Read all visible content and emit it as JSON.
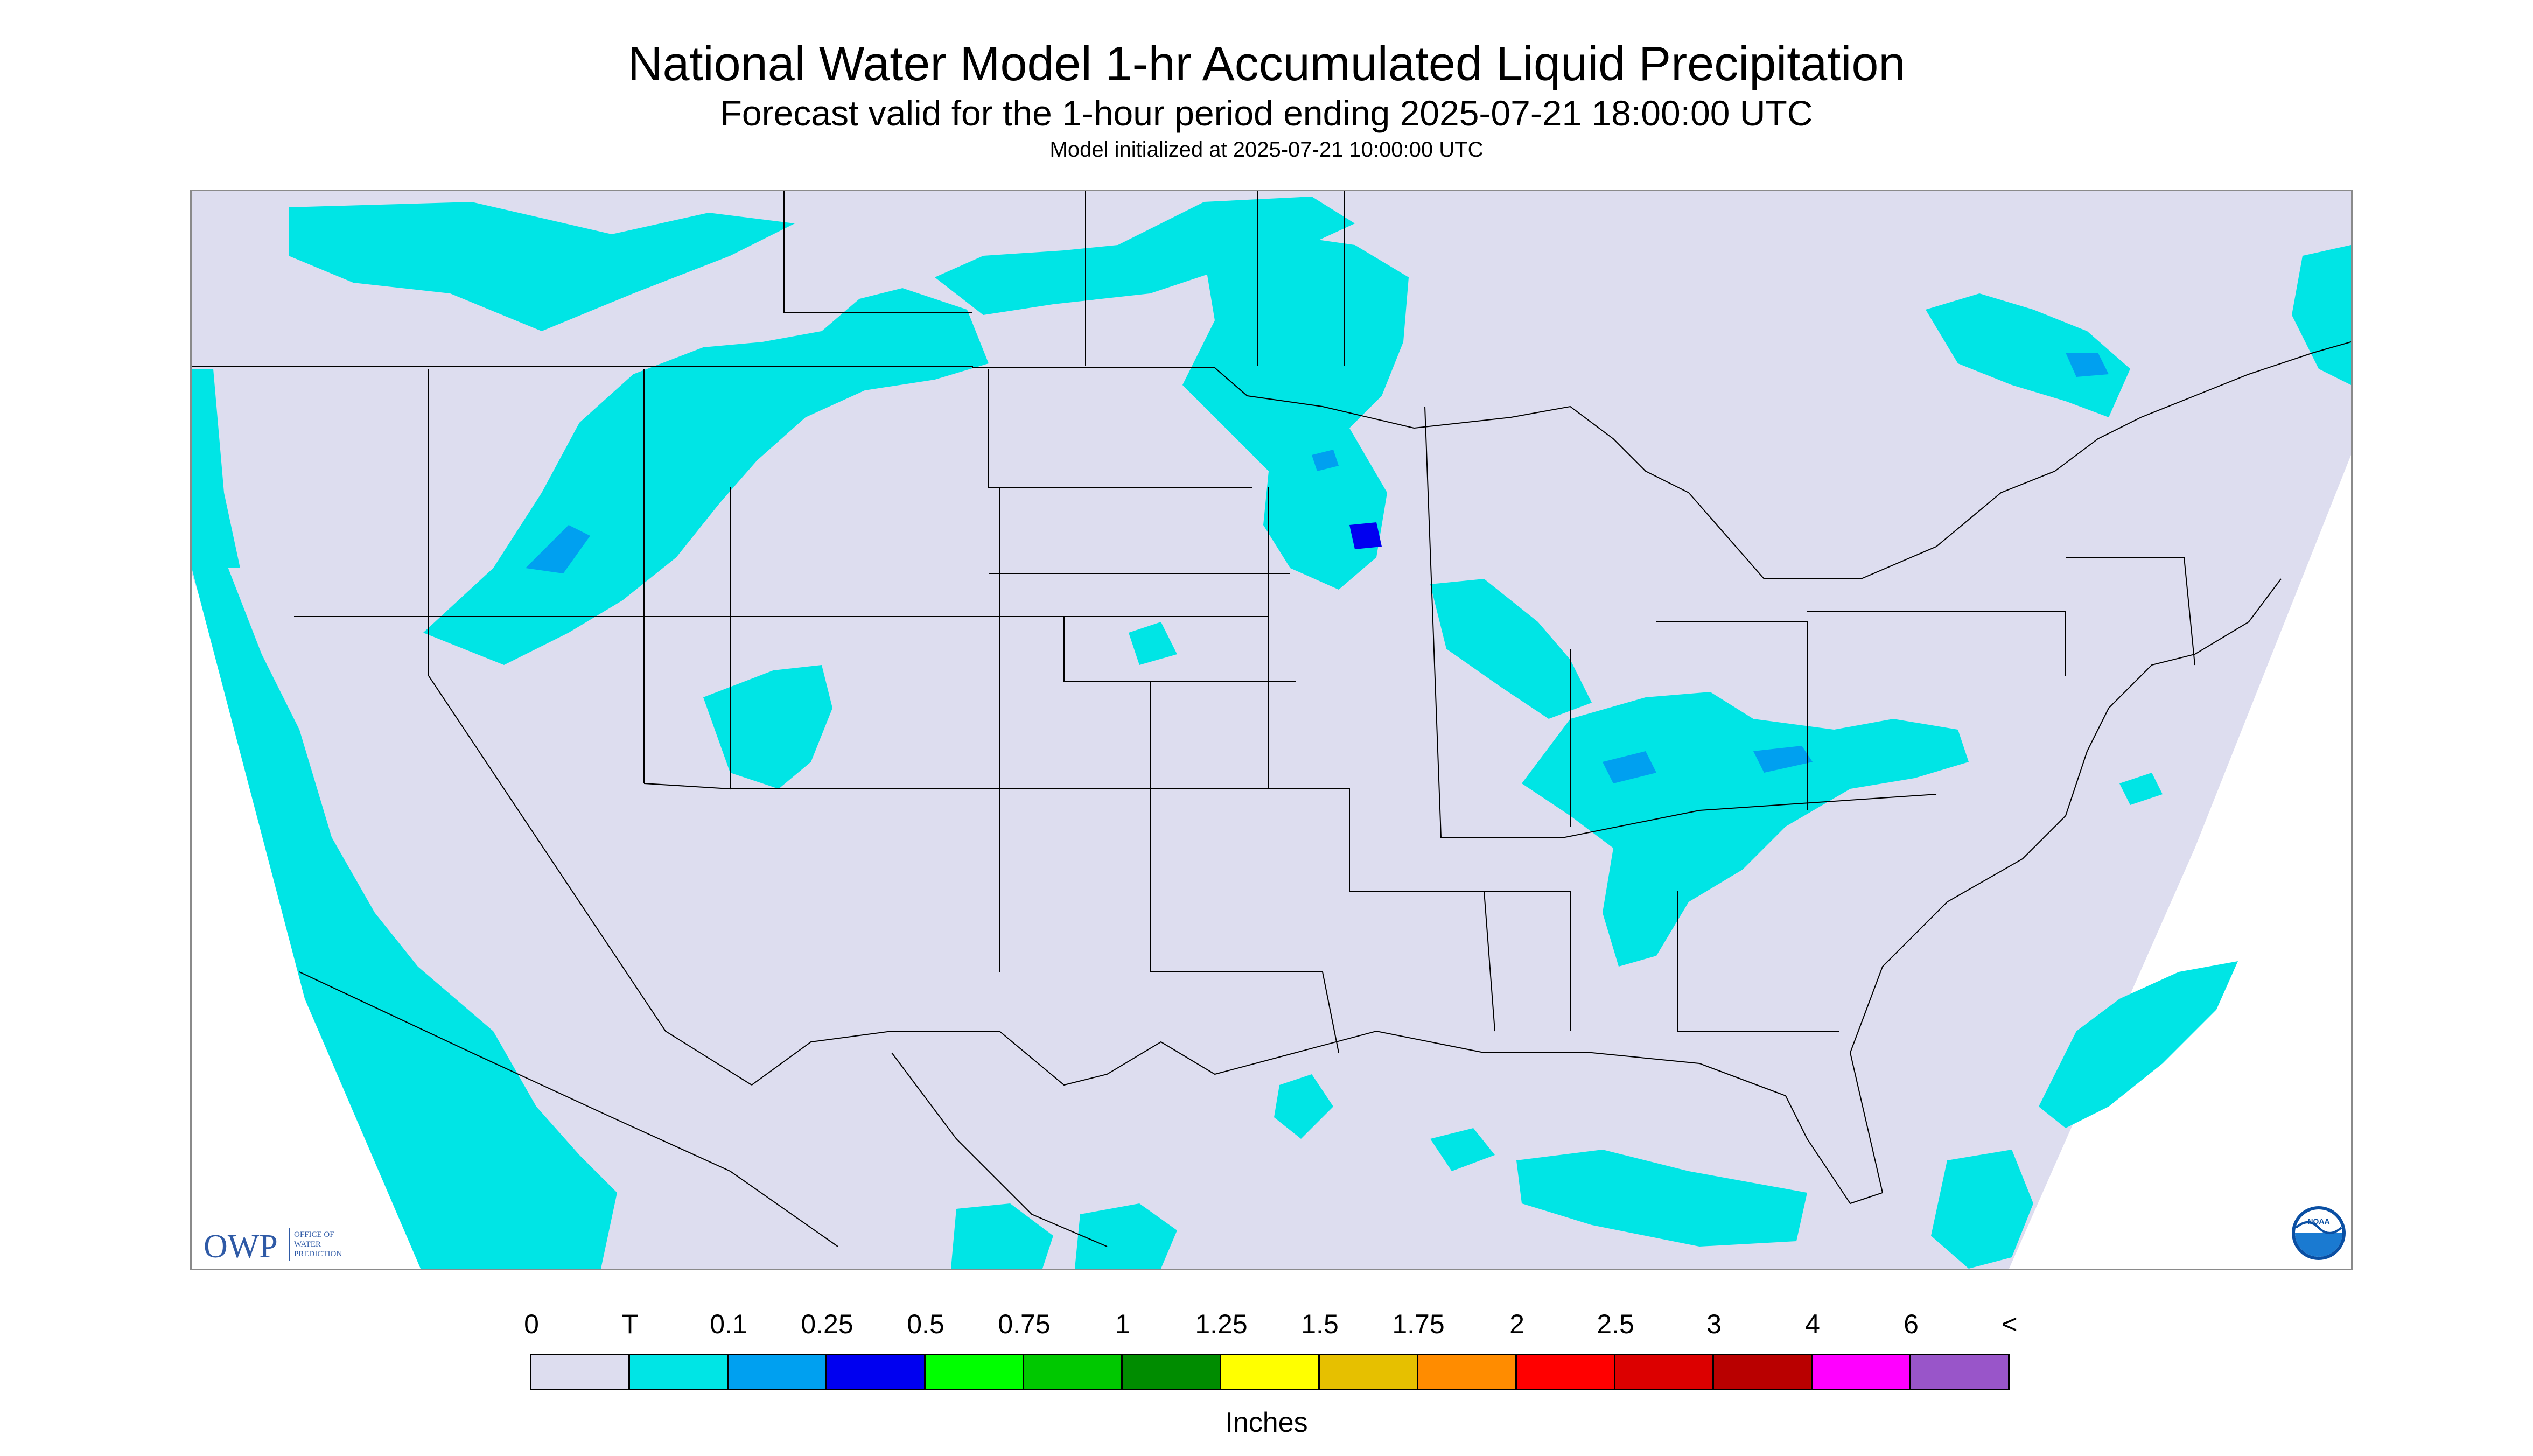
{
  "title": "National Water Model 1-hr Accumulated Liquid Precipitation",
  "subtitle": "Forecast valid for the 1-hour period ending 2025-07-21 18:00:00 UTC",
  "init_text": "Model initialized at 2025-07-21 10:00:00 UTC",
  "logos": {
    "owp_mark": "OWP",
    "owp_text": [
      "OFFICE OF",
      "WATER",
      "PREDICTION"
    ],
    "noaa_text": "NOAA"
  },
  "legend": {
    "tick_labels": [
      "0",
      "T",
      "0.1",
      "0.25",
      "0.5",
      "0.75",
      "1",
      "1.25",
      "1.5",
      "1.75",
      "2",
      "2.5",
      "3",
      "4",
      "6",
      "<"
    ],
    "colors": [
      "#ddddef",
      "#00e5e5",
      "#00a0f0",
      "#0000f0",
      "#00ff00",
      "#00c800",
      "#008c00",
      "#ffff00",
      "#e6c000",
      "#ff8c00",
      "#ff0000",
      "#dc0000",
      "#b90000",
      "#ff00ff",
      "#9955c9"
    ],
    "units": "Inches"
  },
  "map_colors": {
    "background": "#ddddef",
    "outside_domain": "#ffffff",
    "trace": "#00e5e5",
    "light": "#00a0f0",
    "moderate": "#0000f0",
    "boundaries": "#000000"
  }
}
